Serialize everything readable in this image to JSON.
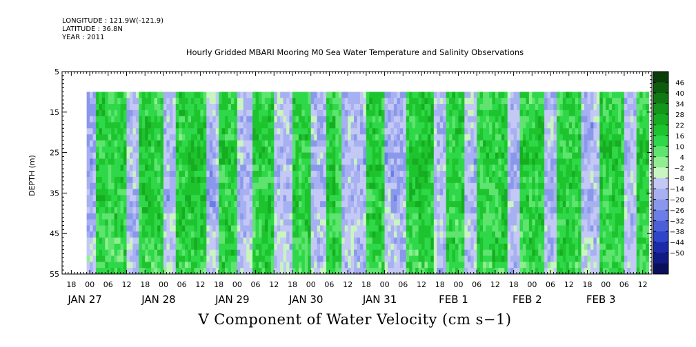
{
  "header": {
    "longitude": "LONGITUDE : 121.9W(-121.9)",
    "latitude": "LATITUDE : 36.8N",
    "year": "YEAR : 2011"
  },
  "chart_data": {
    "type": "heatmap",
    "title": "Hourly Gridded MBARI Mooring M0 Sea Water Temperature and Salinity Observations",
    "variable_label": "V Component of Water Velocity (cm s−1)",
    "xlabel": "",
    "ylabel": "DEPTH (m)",
    "x_axis": {
      "type": "time",
      "start": "2011-01-26 15:00",
      "end": "2011-02-03 15:00",
      "hour_ticks": [
        "18",
        "00",
        "06",
        "12",
        "18",
        "00",
        "06",
        "12",
        "18",
        "00",
        "06",
        "12",
        "18",
        "00",
        "06",
        "12",
        "18",
        "00",
        "06",
        "12",
        "18",
        "00",
        "06",
        "12",
        "18",
        "00",
        "06",
        "12",
        "18",
        "00",
        "06",
        "12"
      ],
      "date_labels": [
        "JAN 27",
        "JAN 28",
        "JAN 29",
        "JAN 30",
        "JAN 31",
        "FEB  1",
        "FEB  2",
        "FEB  3"
      ]
    },
    "y_axis": {
      "range": [
        5,
        55
      ],
      "inverted": true,
      "tick_labels": [
        "5",
        "15",
        "25",
        "35",
        "45",
        "55"
      ],
      "data_range": [
        10,
        55
      ]
    },
    "data_start": "2011-01-26 23:00",
    "data_end": "2011-02-03 14:00",
    "colorbar": {
      "levels": [
        48,
        46,
        40,
        34,
        28,
        22,
        16,
        10,
        4,
        -2,
        -8,
        -14,
        -20,
        -26,
        -32,
        -38,
        -44,
        -50
      ],
      "labels": [
        "46",
        "40",
        "34",
        "28",
        "22",
        "16",
        "10",
        "4",
        "−2",
        "−8",
        "−14",
        "−20",
        "−26",
        "−32",
        "−38",
        "−44",
        "−50"
      ],
      "colors": [
        "#0a3d0a",
        "#0d5c0d",
        "#0f7a12",
        "#13961a",
        "#17ad22",
        "#1ec42e",
        "#2fd848",
        "#5ee46f",
        "#90ee90",
        "#c8f5c0",
        "#c3c8f5",
        "#a7b0f0",
        "#8a98ec",
        "#6b7de6",
        "#4b5fd9",
        "#2f44c8",
        "#1a2aa8",
        "#101a82",
        "#0a0f5c"
      ]
    },
    "series_profile": {
      "description": "V-velocity field sampled by day-fraction; positive (green) and negative (blue) bands alternate roughly every half day",
      "band_pattern": [
        {
          "start": "2011-01-26 23:00",
          "sign": "negative"
        },
        {
          "start": "2011-01-27 02:00",
          "sign": "positive"
        },
        {
          "start": "2011-01-27 12:00",
          "sign": "negative"
        },
        {
          "start": "2011-01-27 16:00",
          "sign": "positive"
        },
        {
          "start": "2011-01-28 00:00",
          "sign": "negative"
        },
        {
          "start": "2011-01-28 04:00",
          "sign": "positive"
        },
        {
          "start": "2011-01-28 14:00",
          "sign": "negative"
        },
        {
          "start": "2011-01-28 18:00",
          "sign": "positive"
        },
        {
          "start": "2011-01-29 00:00",
          "sign": "negative"
        },
        {
          "start": "2011-01-29 05:00",
          "sign": "positive"
        },
        {
          "start": "2011-01-29 12:00",
          "sign": "negative"
        },
        {
          "start": "2011-01-29 18:00",
          "sign": "positive"
        },
        {
          "start": "2011-01-30 00:00",
          "sign": "negative"
        },
        {
          "start": "2011-01-30 05:00",
          "sign": "positive"
        },
        {
          "start": "2011-01-30 10:00",
          "sign": "negative"
        },
        {
          "start": "2011-01-30 18:00",
          "sign": "positive"
        },
        {
          "start": "2011-01-31 00:00",
          "sign": "negative"
        },
        {
          "start": "2011-01-31 07:00",
          "sign": "positive"
        },
        {
          "start": "2011-01-31 16:00",
          "sign": "negative"
        },
        {
          "start": "2011-01-31 20:00",
          "sign": "positive"
        },
        {
          "start": "2011-02-01 02:00",
          "sign": "negative"
        },
        {
          "start": "2011-02-01 06:00",
          "sign": "positive"
        },
        {
          "start": "2011-02-01 16:00",
          "sign": "negative"
        },
        {
          "start": "2011-02-01 20:00",
          "sign": "positive"
        },
        {
          "start": "2011-02-02 04:00",
          "sign": "negative"
        },
        {
          "start": "2011-02-02 08:00",
          "sign": "positive"
        },
        {
          "start": "2011-02-02 16:00",
          "sign": "negative"
        },
        {
          "start": "2011-02-02 22:00",
          "sign": "positive"
        },
        {
          "start": "2011-02-03 06:00",
          "sign": "negative"
        },
        {
          "start": "2011-02-03 10:00",
          "sign": "positive"
        }
      ]
    }
  }
}
